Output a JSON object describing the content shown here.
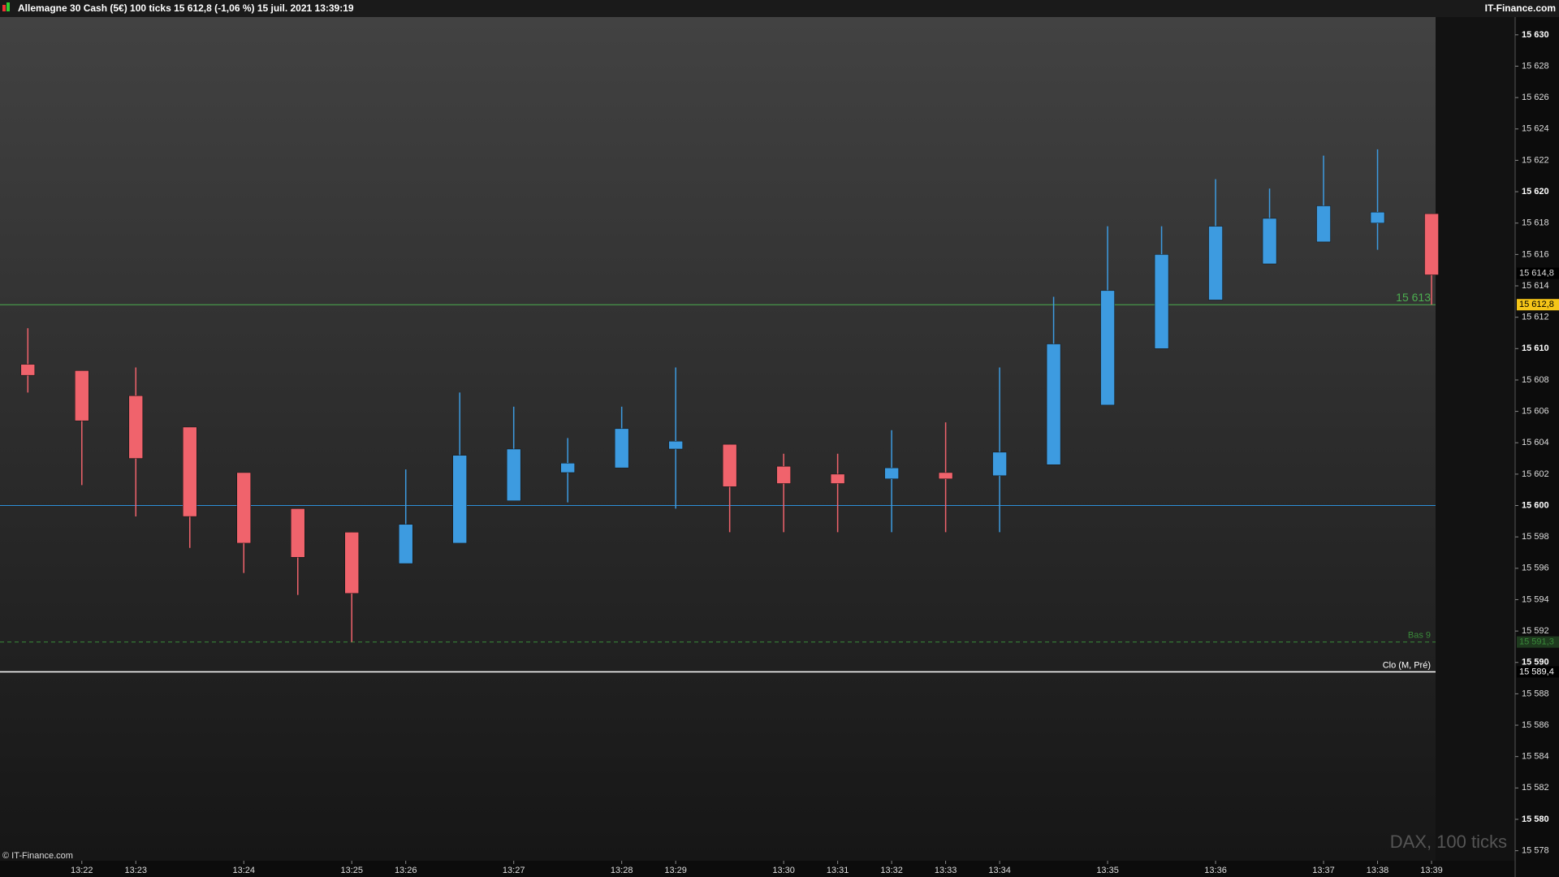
{
  "chart_data": {
    "type": "candlestick",
    "title": "Allemagne 30 Cash (5€) 100 ticks 15 612,8 (-1,06 %) 15 juil. 2021 13:39:19",
    "brand": "IT-Finance.com",
    "copyright": "© IT-Finance.com",
    "watermark": "DAX, 100 ticks",
    "categories": [
      null,
      "13:22",
      "13:23",
      null,
      "13:24",
      null,
      "13:25",
      "13:26",
      null,
      "13:27",
      null,
      "13:28",
      "13:29",
      null,
      "13:30",
      "13:31",
      "13:32",
      "13:33",
      "13:34",
      null,
      "13:35",
      null,
      "13:36",
      null,
      "13:37",
      "13:38",
      "13:39"
    ],
    "open": [
      15609.0,
      15608.6,
      15607.0,
      15605.0,
      15602.1,
      15599.8,
      15598.3,
      15596.3,
      15597.6,
      15600.3,
      15602.1,
      15602.4,
      15603.6,
      15603.9,
      15602.5,
      15602.0,
      15601.7,
      15602.1,
      15601.9,
      15602.6,
      15606.4,
      15610.0,
      15613.1,
      15615.4,
      15616.8,
      15618.0,
      15618.6
    ],
    "high": [
      15611.3,
      15608.6,
      15608.8,
      15605.0,
      15602.1,
      15599.8,
      15598.3,
      15602.3,
      15607.2,
      15606.3,
      15604.3,
      15606.3,
      15608.8,
      15603.9,
      15603.3,
      15603.3,
      15604.8,
      15605.3,
      15608.8,
      15613.3,
      15617.8,
      15617.8,
      15620.8,
      15620.2,
      15622.3,
      15622.7,
      15618.6
    ],
    "low": [
      15607.2,
      15601.3,
      15599.3,
      15597.3,
      15595.7,
      15594.3,
      15591.3,
      15596.3,
      15597.6,
      15600.3,
      15600.2,
      15602.4,
      15599.8,
      15598.3,
      15598.3,
      15598.3,
      15598.3,
      15598.3,
      15598.3,
      15602.6,
      15606.4,
      15610.0,
      15613.1,
      15615.4,
      15616.8,
      15616.3,
      15612.8
    ],
    "close": [
      15608.3,
      15605.4,
      15603.0,
      15599.3,
      15597.6,
      15596.7,
      15594.4,
      15598.8,
      15603.2,
      15603.6,
      15602.7,
      15604.9,
      15604.1,
      15601.2,
      15601.4,
      15601.4,
      15602.4,
      15601.7,
      15603.4,
      15610.3,
      15613.7,
      15616.0,
      15617.8,
      15618.3,
      15619.1,
      15618.7,
      15614.7
    ],
    "up_color": "#3d9be0",
    "down_color": "#f0636c",
    "ylim": [
      15577,
      15631
    ],
    "yticks": [
      {
        "value": 15578,
        "label": "15 578"
      },
      {
        "value": 15580,
        "label": "15 580"
      },
      {
        "value": 15582,
        "label": "15 582"
      },
      {
        "value": 15584,
        "label": "15 584"
      },
      {
        "value": 15586,
        "label": "15 586"
      },
      {
        "value": 15588,
        "label": "15 588"
      },
      {
        "value": 15590,
        "label": "15 590"
      },
      {
        "value": 15592,
        "label": "15 592"
      },
      {
        "value": 15594,
        "label": "15 594"
      },
      {
        "value": 15596,
        "label": "15 596"
      },
      {
        "value": 15598,
        "label": "15 598"
      },
      {
        "value": 15600,
        "label": "15 600"
      },
      {
        "value": 15602,
        "label": "15 602"
      },
      {
        "value": 15604,
        "label": "15 604"
      },
      {
        "value": 15606,
        "label": "15 606"
      },
      {
        "value": 15608,
        "label": "15 608"
      },
      {
        "value": 15610,
        "label": "15 610"
      },
      {
        "value": 15612,
        "label": "15 612"
      },
      {
        "value": 15614,
        "label": "15 614"
      },
      {
        "value": 15616,
        "label": "15 616"
      },
      {
        "value": 15618,
        "label": "15 618"
      },
      {
        "value": 15620,
        "label": "15 620"
      },
      {
        "value": 15622,
        "label": "15 622"
      },
      {
        "value": 15624,
        "label": "15 624"
      },
      {
        "value": 15626,
        "label": "15 626"
      },
      {
        "value": 15628,
        "label": "15 628"
      },
      {
        "value": 15630,
        "label": "15 630"
      }
    ],
    "levels": [
      {
        "value": 15612.8,
        "label": "15 612,8",
        "text": "15 613",
        "color": "#4caf50",
        "style": "solid",
        "tag": "#f5c518"
      },
      {
        "value": 15600,
        "color": "#2e8fd8",
        "style": "solid"
      },
      {
        "value": 15591.3,
        "label": "15 591,3",
        "text": "Bas 9",
        "color": "#3a8a3a",
        "style": "dashed",
        "tag": "#1e3a1e"
      },
      {
        "value": 15589.4,
        "label": "15 589,4",
        "text": "Clo (M, Pré)",
        "color": "#ffffff",
        "style": "solid",
        "tag": "#000000"
      },
      {
        "value": 15614.8,
        "label": "15 614,8",
        "color": "#888888",
        "style": "tag",
        "tag": "#000000"
      }
    ]
  }
}
